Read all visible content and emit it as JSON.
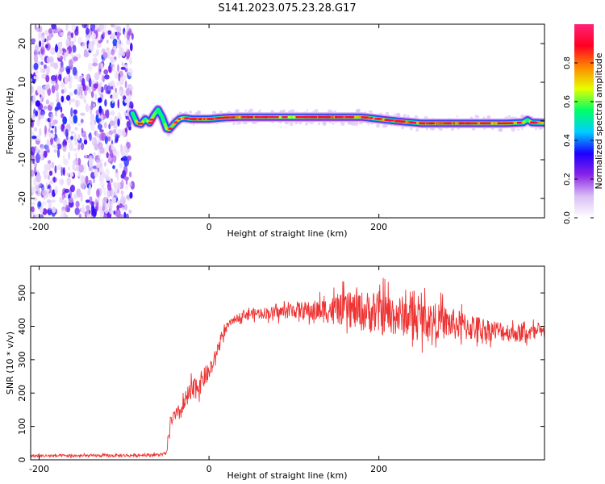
{
  "figure_title": "S141.2023.075.23.28.G17",
  "colors": {
    "snr_line": "#ee3333",
    "frame": "#000000",
    "colormap": [
      "#ffffff",
      "#d9bff5",
      "#8a22e6",
      "#1a00ff",
      "#00cfff",
      "#00ff66",
      "#e6ff00",
      "#ff8800",
      "#ff0022",
      "#ff2277"
    ]
  },
  "chart_data": [
    {
      "type": "heatmap",
      "name": "spectrogram",
      "xlabel": "Height of straight line (km)",
      "ylabel": "Frequency (Hz)",
      "xlim": [
        -210,
        395
      ],
      "ylim": [
        -25,
        25
      ],
      "xticks": [
        -200,
        0,
        200
      ],
      "yticks": [
        -20,
        -10,
        0,
        10,
        20
      ],
      "x_tick_labels": [
        "-200",
        "0",
        "200"
      ],
      "y_tick_labels": [
        "-20",
        "-10",
        "0",
        "10",
        "20"
      ],
      "colorbar": {
        "label": "Normalized spectral amplitude",
        "range": [
          0,
          1
        ],
        "ticks": [
          0.0,
          0.2,
          0.4,
          0.6,
          0.8
        ],
        "tick_labels": [
          "0.0",
          "0.2",
          "0.4",
          "0.6",
          "0.8"
        ]
      },
      "noise_region_x": [
        -210,
        -90
      ],
      "ridge": {
        "x": [
          -90,
          -85,
          -80,
          -75,
          -70,
          -65,
          -60,
          -55,
          -50,
          -47,
          -44,
          -40,
          -35,
          -30,
          -20,
          0,
          20,
          40,
          60,
          100,
          120,
          150,
          180,
          200,
          220,
          250,
          300,
          350,
          370,
          375,
          380,
          395
        ],
        "freq": [
          2.0,
          -0.5,
          -0.8,
          0.5,
          -0.5,
          1.5,
          3.0,
          1.0,
          -2.0,
          -2.2,
          -1.5,
          -0.5,
          0.5,
          0.8,
          0.5,
          0.5,
          0.9,
          1.0,
          1.0,
          1.0,
          1.0,
          1.0,
          1.0,
          0.5,
          0.0,
          -0.6,
          -0.6,
          -0.6,
          -0.4,
          0.3,
          -0.4,
          -0.5
        ],
        "peak_amplitude": [
          0.15,
          0.95,
          0.9,
          0.6,
          0.95,
          0.7,
          0.6,
          0.5,
          0.9,
          0.95,
          0.7,
          0.95,
          0.8,
          0.9,
          0.95,
          0.95,
          0.85,
          0.95,
          0.85,
          0.8,
          0.95,
          0.95,
          0.9,
          0.9,
          0.95,
          0.95,
          0.95,
          0.9,
          0.9,
          0.6,
          0.95,
          0.9
        ]
      }
    },
    {
      "type": "line",
      "name": "snr",
      "xlabel": "Height of straight line (km)",
      "ylabel": "SNR (10 * v/v)",
      "xlim": [
        -210,
        395
      ],
      "ylim": [
        0,
        580
      ],
      "xticks": [
        -200,
        0,
        200
      ],
      "yticks": [
        0,
        100,
        200,
        300,
        400,
        500
      ],
      "x_tick_labels": [
        "-200",
        "0",
        "200"
      ],
      "y_tick_labels": [
        "0",
        "100",
        "200",
        "300",
        "400",
        "500"
      ],
      "series": [
        {
          "x": [
            -210,
            -150,
            -100,
            -60,
            -50,
            -48,
            -45,
            -40,
            -35,
            -30,
            -25,
            -20,
            -15,
            -10,
            -5,
            0,
            5,
            10,
            15,
            20,
            25,
            30,
            40,
            60,
            80,
            100,
            120,
            150,
            180,
            200,
            230,
            260,
            300,
            330,
            360,
            395
          ],
          "values": [
            12,
            12,
            13,
            15,
            18,
            60,
            120,
            130,
            140,
            160,
            190,
            200,
            220,
            230,
            250,
            260,
            290,
            330,
            370,
            390,
            410,
            420,
            435,
            440,
            440,
            450,
            445,
            450,
            445,
            440,
            430,
            420,
            400,
            390,
            380,
            380
          ],
          "noise_amplitude": [
            8,
            8,
            8,
            8,
            8,
            25,
            35,
            40,
            45,
            55,
            60,
            65,
            65,
            60,
            55,
            50,
            40,
            35,
            30,
            25,
            20,
            20,
            25,
            30,
            35,
            45,
            55,
            80,
            110,
            120,
            110,
            100,
            80,
            60,
            50,
            45
          ]
        }
      ]
    }
  ]
}
